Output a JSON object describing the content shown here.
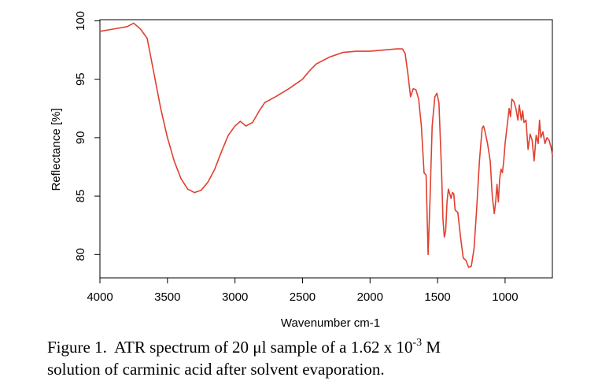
{
  "chart_data": {
    "type": "line",
    "xlabel": "Wavenumber cm-1",
    "ylabel": "Reflectance [%]",
    "caption": {
      "line1": "Figure 1.  ATR spectrum of 20 μl sample of a 1.62 x 10",
      "sup": "-3",
      "line1_end": " M",
      "line2": "solution of carminic acid after solvent evaporation."
    },
    "xlim": [
      4000,
      650
    ],
    "xticks": [
      4000,
      3500,
      3000,
      2500,
      2000,
      1500,
      1000
    ],
    "ylim": [
      78,
      100.1
    ],
    "yticks": [
      80,
      85,
      90,
      95,
      100
    ],
    "x": [
      4000,
      3900,
      3800,
      3750,
      3700,
      3650,
      3600,
      3550,
      3500,
      3450,
      3400,
      3350,
      3300,
      3250,
      3200,
      3150,
      3100,
      3050,
      3000,
      2960,
      2920,
      2870,
      2820,
      2780,
      2700,
      2600,
      2500,
      2450,
      2400,
      2300,
      2200,
      2100,
      2000,
      1900,
      1800,
      1760,
      1740,
      1720,
      1700,
      1680,
      1660,
      1640,
      1620,
      1600,
      1585,
      1570,
      1555,
      1540,
      1520,
      1505,
      1490,
      1470,
      1460,
      1450,
      1440,
      1430,
      1420,
      1410,
      1400,
      1390,
      1380,
      1370,
      1350,
      1330,
      1310,
      1290,
      1270,
      1250,
      1230,
      1210,
      1190,
      1170,
      1160,
      1150,
      1130,
      1110,
      1095,
      1080,
      1070,
      1060,
      1050,
      1040,
      1030,
      1020,
      1010,
      1000,
      985,
      970,
      960,
      950,
      935,
      920,
      905,
      895,
      880,
      870,
      860,
      845,
      830,
      815,
      800,
      785,
      770,
      755,
      745,
      735,
      720,
      705,
      690,
      675,
      660,
      650
    ],
    "series": [
      {
        "color": "#e0402f",
        "values": [
          99.1,
          99.3,
          99.5,
          99.8,
          99.3,
          98.5,
          95.5,
          92.5,
          90,
          88,
          86.5,
          85.6,
          85.3,
          85.5,
          86.2,
          87.3,
          88.8,
          90.2,
          91.0,
          91.4,
          91.0,
          91.3,
          92.3,
          93.0,
          93.5,
          94.2,
          95.0,
          95.7,
          96.3,
          96.9,
          97.3,
          97.4,
          97.4,
          97.5,
          97.6,
          97.6,
          97.2,
          95.5,
          93.5,
          94.2,
          94.1,
          93.3,
          91,
          87,
          86.8,
          80,
          85,
          91,
          93.5,
          93.8,
          93,
          87,
          83,
          81.5,
          82,
          84.5,
          85.6,
          85.2,
          84.8,
          85.3,
          85.2,
          83.8,
          83.6,
          81.5,
          79.7,
          79.5,
          78.9,
          79,
          80.5,
          84,
          88,
          90.8,
          91,
          90.6,
          89.5,
          88,
          85,
          83.5,
          84.5,
          86,
          84.5,
          86.5,
          87.3,
          87,
          88,
          89.5,
          91,
          92.5,
          91.8,
          93.3,
          93.1,
          92.5,
          91.5,
          92.8,
          91.5,
          92.3,
          91.3,
          91.5,
          89,
          90.3,
          89.8,
          88,
          90.2,
          89.5,
          91.5,
          90,
          90.5,
          89.5,
          90,
          89.8,
          89.2,
          88.5
        ]
      }
    ]
  }
}
